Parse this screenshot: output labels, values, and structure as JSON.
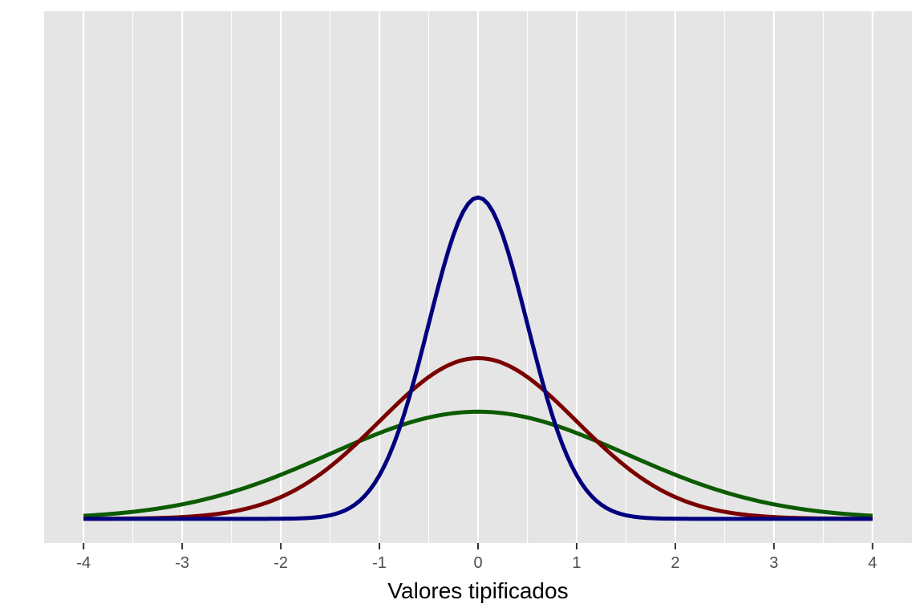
{
  "chart_data": {
    "type": "line",
    "title": "",
    "xlabel": "Valores tipificados",
    "ylabel": "",
    "xlim": [
      -4.4,
      4.4
    ],
    "ylim": [
      -0.06,
      1.26
    ],
    "x_ticks": [
      -4,
      -3,
      -2,
      -1,
      0,
      1,
      2,
      3,
      4
    ],
    "x_tick_labels": [
      "-4",
      "-3",
      "-2",
      "-1",
      "0",
      "1",
      "2",
      "3",
      "4"
    ],
    "y_ticks_shown": false,
    "grid": true,
    "legend": "none",
    "panel_background": "#e5e5e5",
    "grid_color": "#ffffff",
    "series": [
      {
        "sd": 1.5,
        "color": "#0b5b00",
        "x": [
          -4,
          -3.5,
          -3,
          -2.5,
          -2,
          -1.5,
          -1,
          -0.5,
          0,
          0.5,
          1,
          1.5,
          2,
          2.5,
          3,
          3.5,
          4
        ],
        "values": [
          0.0076,
          0.0174,
          0.036,
          0.0665,
          0.1093,
          0.1613,
          0.213,
          0.2516,
          0.266,
          0.2516,
          0.213,
          0.1613,
          0.1093,
          0.0665,
          0.036,
          0.0174,
          0.0076
        ]
      },
      {
        "sd": 1.0,
        "color": "#7a0000",
        "x": [
          -4,
          -3.5,
          -3,
          -2.5,
          -2,
          -1.5,
          -1,
          -0.5,
          0,
          0.5,
          1,
          1.5,
          2,
          2.5,
          3,
          3.5,
          4
        ],
        "values": [
          0.0001,
          0.0009,
          0.0044,
          0.0175,
          0.054,
          0.1295,
          0.242,
          0.3521,
          0.3989,
          0.3521,
          0.242,
          0.1295,
          0.054,
          0.0175,
          0.0044,
          0.0009,
          0.0001
        ]
      },
      {
        "sd": 0.5,
        "color": "#00007f",
        "x": [
          -4,
          -3.5,
          -3,
          -2.5,
          -2,
          -1.5,
          -1,
          -0.5,
          0,
          0.5,
          1,
          1.5,
          2,
          2.5,
          3,
          3.5,
          4
        ],
        "values": [
          0,
          0,
          0,
          0,
          0.0003,
          0.0089,
          0.108,
          0.4839,
          0.7979,
          0.4839,
          0.108,
          0.0089,
          0.0003,
          0,
          0,
          0,
          0
        ]
      }
    ]
  }
}
